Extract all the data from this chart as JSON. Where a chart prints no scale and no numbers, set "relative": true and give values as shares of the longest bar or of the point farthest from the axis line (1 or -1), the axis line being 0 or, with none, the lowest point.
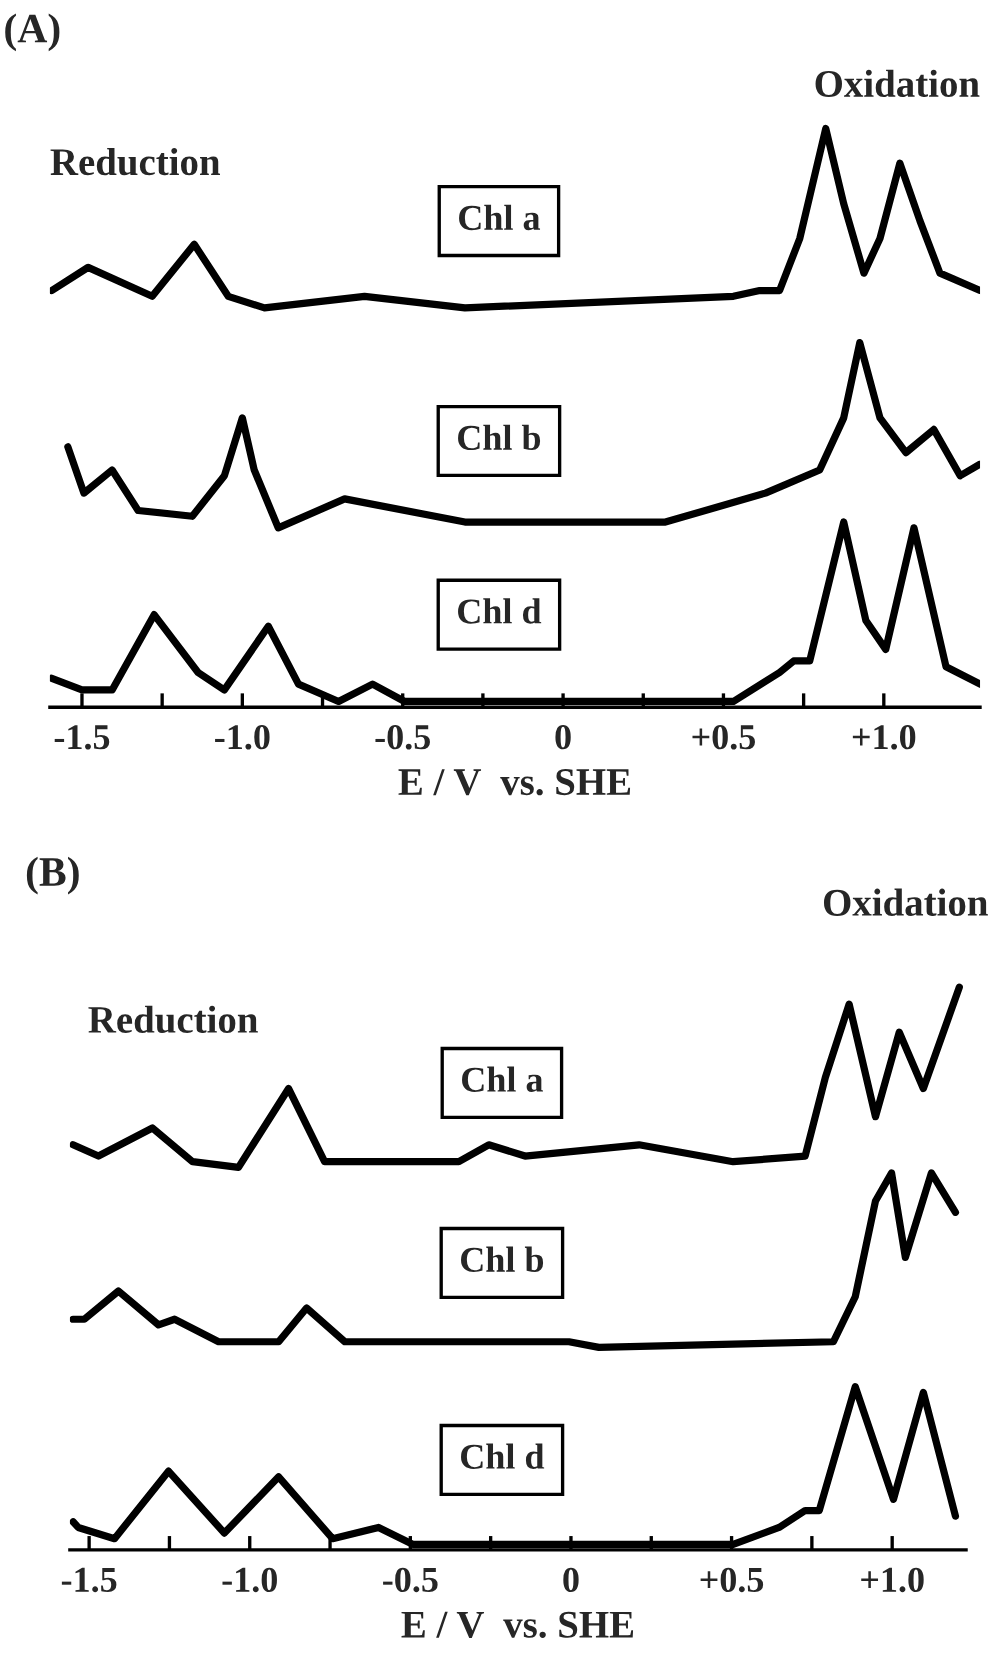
{
  "chart_data": [
    {
      "type": "line",
      "title": "(A)",
      "xlabel": "E / V  vs. SHE",
      "relative": true,
      "legend": false,
      "grid": false,
      "xlim": [
        -1.6,
        1.3
      ],
      "xticks": [
        {
          "value": -1.5,
          "label": "-1.5"
        },
        {
          "value": -1.25,
          "label": null
        },
        {
          "value": -1.0,
          "label": "-1.0"
        },
        {
          "value": -0.75,
          "label": null
        },
        {
          "value": -0.5,
          "label": "-0.5"
        },
        {
          "value": -0.25,
          "label": null
        },
        0,
        {
          "value": 0.25,
          "label": null
        },
        {
          "value": 0.5,
          "label": "+0.5"
        },
        {
          "value": 0.75,
          "label": null
        },
        {
          "value": 1.0,
          "label": "+1.0"
        }
      ],
      "annotations": [
        "Reduction",
        "Oxidation"
      ],
      "series": [
        {
          "name": "Chl a",
          "color": "#000000",
          "x": [
            -1.594,
            -1.481,
            -1.281,
            -1.15,
            -1.044,
            -0.931,
            -0.619,
            -0.306,
            0.531,
            0.613,
            0.675,
            0.738,
            0.819,
            0.875,
            0.938,
            0.988,
            1.05,
            1.113,
            1.175,
            1.3
          ],
          "values": [
            0.72,
            0.76,
            0.71,
            0.8,
            0.71,
            0.69,
            0.71,
            0.69,
            0.71,
            0.72,
            0.72,
            0.81,
            1.0,
            0.87,
            0.75,
            0.81,
            0.94,
            0.84,
            0.75,
            0.72
          ]
        },
        {
          "name": "Chl b",
          "color": "#000000",
          "x": [
            -1.544,
            -1.494,
            -1.406,
            -1.325,
            -1.156,
            -1.056,
            -1.0,
            -0.963,
            -0.888,
            -0.681,
            -0.306,
            0.319,
            0.631,
            0.8,
            0.875,
            0.925,
            0.988,
            1.069,
            1.156,
            1.238,
            1.3
          ],
          "values": [
            0.45,
            0.37,
            0.41,
            0.34,
            0.33,
            0.4,
            0.5,
            0.41,
            0.31,
            0.36,
            0.32,
            0.32,
            0.37,
            0.41,
            0.5,
            0.63,
            0.5,
            0.44,
            0.48,
            0.4,
            0.42
          ]
        },
        {
          "name": "Chl d",
          "color": "#000000",
          "x": [
            -1.594,
            -1.5,
            -1.406,
            -1.275,
            -1.138,
            -1.056,
            -0.919,
            -0.825,
            -0.7,
            -0.594,
            -0.494,
            -0.094,
            0.531,
            0.675,
            0.719,
            0.769,
            0.875,
            0.944,
            1.006,
            1.094,
            1.194,
            1.3
          ],
          "values": [
            0.05,
            0.03,
            0.03,
            0.16,
            0.06,
            0.03,
            0.14,
            0.04,
            0.01,
            0.04,
            0.01,
            0.01,
            0.01,
            0.06,
            0.08,
            0.08,
            0.32,
            0.15,
            0.1,
            0.31,
            0.07,
            0.04
          ]
        }
      ]
    },
    {
      "type": "line",
      "title": "(B)",
      "xlabel": "E / V  vs. SHE",
      "relative": true,
      "legend": false,
      "grid": false,
      "xlim": [
        -1.56,
        1.23
      ],
      "xticks": [
        {
          "value": -1.5,
          "label": "-1.5"
        },
        {
          "value": -1.25,
          "label": null
        },
        {
          "value": -1.0,
          "label": "-1.0"
        },
        {
          "value": -0.75,
          "label": null
        },
        {
          "value": -0.5,
          "label": "-0.5"
        },
        {
          "value": -0.25,
          "label": null
        },
        0,
        {
          "value": 0.25,
          "label": null
        },
        {
          "value": 0.5,
          "label": "+0.5"
        },
        {
          "value": 0.75,
          "label": null
        },
        {
          "value": 1.0,
          "label": "+1.0"
        }
      ],
      "annotations": [
        "Reduction",
        "Oxidation"
      ],
      "series": [
        {
          "name": "Chl a",
          "color": "#000000",
          "x": [
            -1.55,
            -1.471,
            -1.303,
            -1.178,
            -1.035,
            -0.879,
            -0.767,
            -0.349,
            -0.256,
            -0.143,
            0.212,
            0.505,
            0.729,
            0.792,
            0.866,
            0.948,
            1.022,
            1.097,
            1.209
          ],
          "values": [
            0.72,
            0.7,
            0.75,
            0.69,
            0.68,
            0.82,
            0.69,
            0.69,
            0.72,
            0.7,
            0.72,
            0.69,
            0.7,
            0.84,
            0.97,
            0.77,
            0.92,
            0.82,
            1.0
          ]
        },
        {
          "name": "Chl b",
          "color": "#000000",
          "x": [
            -1.55,
            -1.515,
            -1.409,
            -1.284,
            -1.234,
            -1.097,
            -0.91,
            -0.823,
            -0.704,
            -0.224,
            -0.006,
            0.087,
            0.817,
            0.885,
            0.948,
            0.998,
            1.041,
            1.122,
            1.197
          ],
          "values": [
            0.41,
            0.41,
            0.46,
            0.4,
            0.41,
            0.37,
            0.37,
            0.43,
            0.37,
            0.37,
            0.37,
            0.36,
            0.37,
            0.45,
            0.62,
            0.67,
            0.52,
            0.67,
            0.6
          ]
        },
        {
          "name": "Chl d",
          "color": "#000000",
          "x": [
            -1.55,
            -1.534,
            -1.421,
            -1.253,
            -1.079,
            -0.91,
            -0.742,
            -0.599,
            -0.493,
            0.505,
            0.648,
            0.729,
            0.773,
            0.885,
            1.004,
            1.097,
            1.197
          ],
          "values": [
            0.05,
            0.04,
            0.02,
            0.14,
            0.03,
            0.13,
            0.02,
            0.04,
            0.01,
            0.01,
            0.04,
            0.07,
            0.07,
            0.29,
            0.09,
            0.28,
            0.06
          ]
        }
      ]
    }
  ]
}
